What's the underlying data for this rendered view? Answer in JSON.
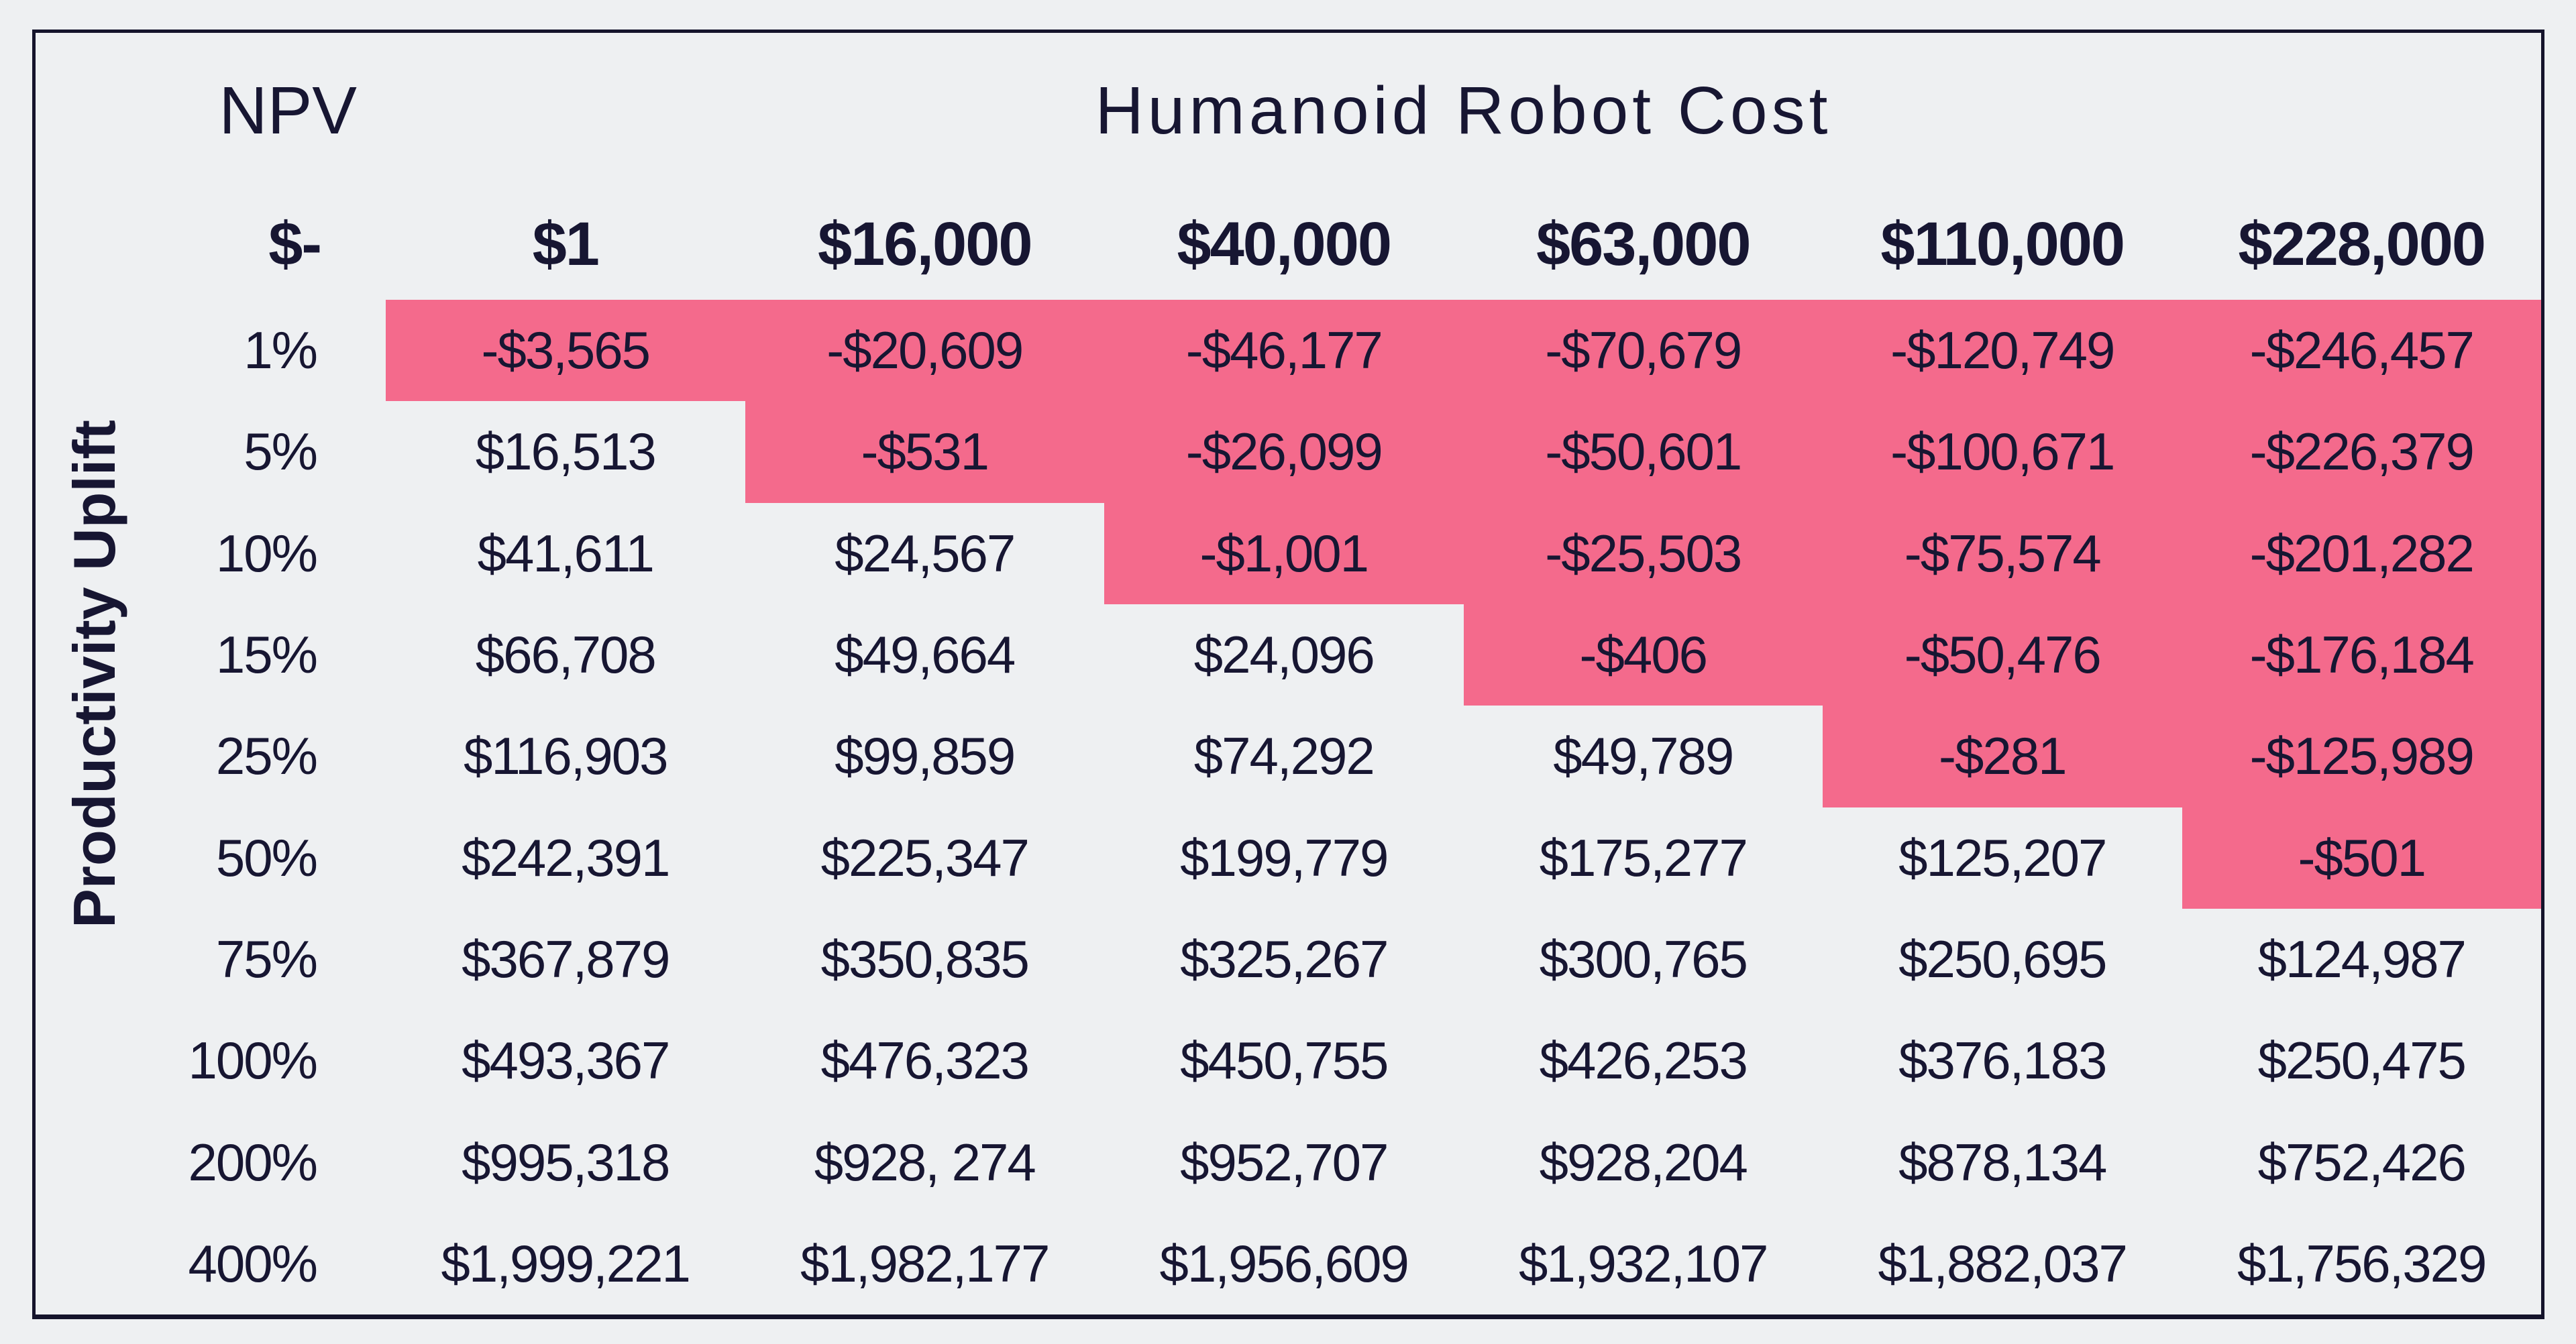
{
  "header": {
    "npv_label": "NPV",
    "cost_axis_title": "Humanoid Robot Cost",
    "zero_cost_label": "$-",
    "cost_columns": [
      "$1",
      "$16,000",
      "$40,000",
      "$63,000",
      "$110,000",
      "$228,000"
    ]
  },
  "left_axis_title": "Productivity Uplift",
  "colors": {
    "background": "#eef0f2",
    "border": "#15142c",
    "text": "#171632",
    "negative_highlight": "#f46a8c"
  },
  "table": {
    "rows": [
      {
        "label": "1%",
        "values": [
          "-$3,565",
          "-$20,609",
          "-$46,177",
          "-$70,679",
          "-$120,749",
          "-$246,457"
        ],
        "negative_from": 0
      },
      {
        "label": "5%",
        "values": [
          "$16,513",
          "-$531",
          "-$26,099",
          "-$50,601",
          "-$100,671",
          "-$226,379"
        ],
        "negative_from": 1
      },
      {
        "label": "10%",
        "values": [
          "$41,611",
          "$24,567",
          "-$1,001",
          "-$25,503",
          "-$75,574",
          "-$201,282"
        ],
        "negative_from": 2
      },
      {
        "label": "15%",
        "values": [
          "$66,708",
          "$49,664",
          "$24,096",
          "-$406",
          "-$50,476",
          "-$176,184"
        ],
        "negative_from": 3
      },
      {
        "label": "25%",
        "values": [
          "$116,903",
          "$99,859",
          "$74,292",
          "$49,789",
          "-$281",
          "-$125,989"
        ],
        "negative_from": 4
      },
      {
        "label": "50%",
        "values": [
          "$242,391",
          "$225,347",
          "$199,779",
          "$175,277",
          "$125,207",
          "-$501"
        ],
        "negative_from": 5
      },
      {
        "label": "75%",
        "values": [
          "$367,879",
          "$350,835",
          "$325,267",
          "$300,765",
          "$250,695",
          "$124,987"
        ],
        "negative_from": 6
      },
      {
        "label": "100%",
        "values": [
          "$493,367",
          "$476,323",
          "$450,755",
          "$426,253",
          "$376,183",
          "$250,475"
        ],
        "negative_from": 6
      },
      {
        "label": "200%",
        "values": [
          "$995,318",
          "$928, 274",
          "$952,707",
          "$928,204",
          "$878,134",
          "$752,426"
        ],
        "negative_from": 6
      },
      {
        "label": "400%",
        "values": [
          "$1,999,221",
          "$1,982,177",
          "$1,956,609",
          "$1,932,107",
          "$1,882,037",
          "$1,756,329"
        ],
        "negative_from": 6
      }
    ]
  },
  "chart_data": {
    "type": "heatmap",
    "title": "Humanoid Robot Cost",
    "xlabel": "Humanoid Robot Cost",
    "ylabel": "Productivity Uplift",
    "corner_label": "$-",
    "x_categories": [
      "$1",
      "$16,000",
      "$40,000",
      "$63,000",
      "$110,000",
      "$228,000"
    ],
    "y_categories": [
      "1%",
      "5%",
      "10%",
      "15%",
      "25%",
      "50%",
      "75%",
      "100%",
      "200%",
      "400%"
    ],
    "values": [
      [
        -3565,
        -20609,
        -46177,
        -70679,
        -120749,
        -246457
      ],
      [
        16513,
        -531,
        -26099,
        -50601,
        -100671,
        -226379
      ],
      [
        41611,
        24567,
        -1001,
        -25503,
        -75574,
        -201282
      ],
      [
        66708,
        49664,
        24096,
        -406,
        -50476,
        -176184
      ],
      [
        116903,
        99859,
        74292,
        49789,
        -281,
        -125989
      ],
      [
        242391,
        225347,
        199779,
        175277,
        125207,
        -501
      ],
      [
        367879,
        350835,
        325267,
        300765,
        250695,
        124987
      ],
      [
        493367,
        476323,
        450755,
        426253,
        376183,
        250475
      ],
      [
        995318,
        928274,
        952707,
        928204,
        878134,
        752426
      ],
      [
        1999221,
        1982177,
        1956609,
        1932107,
        1882037,
        1756329
      ]
    ],
    "legend_position": "none",
    "grid": false,
    "highlight_rule": "cells with negative NPV have pink background"
  }
}
